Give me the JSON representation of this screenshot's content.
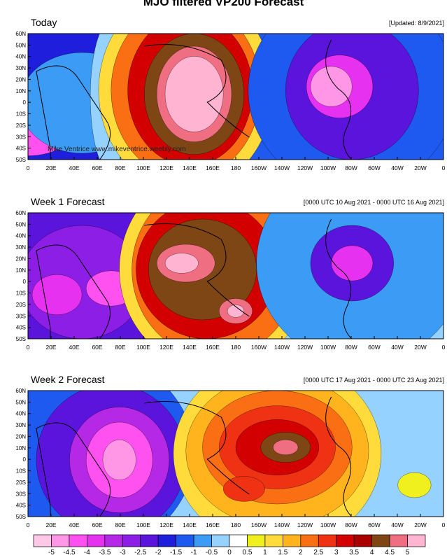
{
  "title": "MJO filtered VP200 Forecast",
  "panels": [
    {
      "label": "Today",
      "note": "[Updated: 8/9/2021]",
      "credit": "Mike Ventrice www.mikeventrice.weebly.com"
    },
    {
      "label": "Week 1 Forecast",
      "note": "[0000 UTC 10 Aug 2021 - 0000 UTC 16 Aug 2021]",
      "credit": ""
    },
    {
      "label": "Week 2 Forecast",
      "note": "[0000 UTC 17 Aug 2021 - 0000 UTC 23 Aug 2021]",
      "credit": ""
    }
  ],
  "lat_labels": [
    "60N",
    "50N",
    "40N",
    "30N",
    "20N",
    "10N",
    "0",
    "10S",
    "20S",
    "30S",
    "40S",
    "50S"
  ],
  "lon_labels": [
    "0",
    "20E",
    "40E",
    "60E",
    "80E",
    "100E",
    "120E",
    "140E",
    "160E",
    "180",
    "160W",
    "140W",
    "120W",
    "100W",
    "80W",
    "60W",
    "40W",
    "20W",
    "0"
  ],
  "colorbar": {
    "labels": [
      "-5",
      "-4.5",
      "-4",
      "-3.5",
      "-3",
      "-2.5",
      "-2",
      "-1.5",
      "-1",
      "-0.5",
      "0",
      "0.5",
      "1",
      "1.5",
      "2",
      "2.5",
      "3",
      "3.5",
      "4",
      "4.5",
      "5"
    ],
    "colors": [
      "#ffc8e6",
      "#ff96e6",
      "#ff50f0",
      "#e632f0",
      "#b428e6",
      "#8c1ee6",
      "#5a14dc",
      "#1e1edc",
      "#1e5af0",
      "#3c9cf5",
      "#96d2ff",
      "#ffffff",
      "#f0f01e",
      "#ffdc3c",
      "#ffb41e",
      "#fa6e14",
      "#f03214",
      "#d20000",
      "#aa0000",
      "#7d4614",
      "#f06e82",
      "#ffb4d2"
    ]
  }
}
